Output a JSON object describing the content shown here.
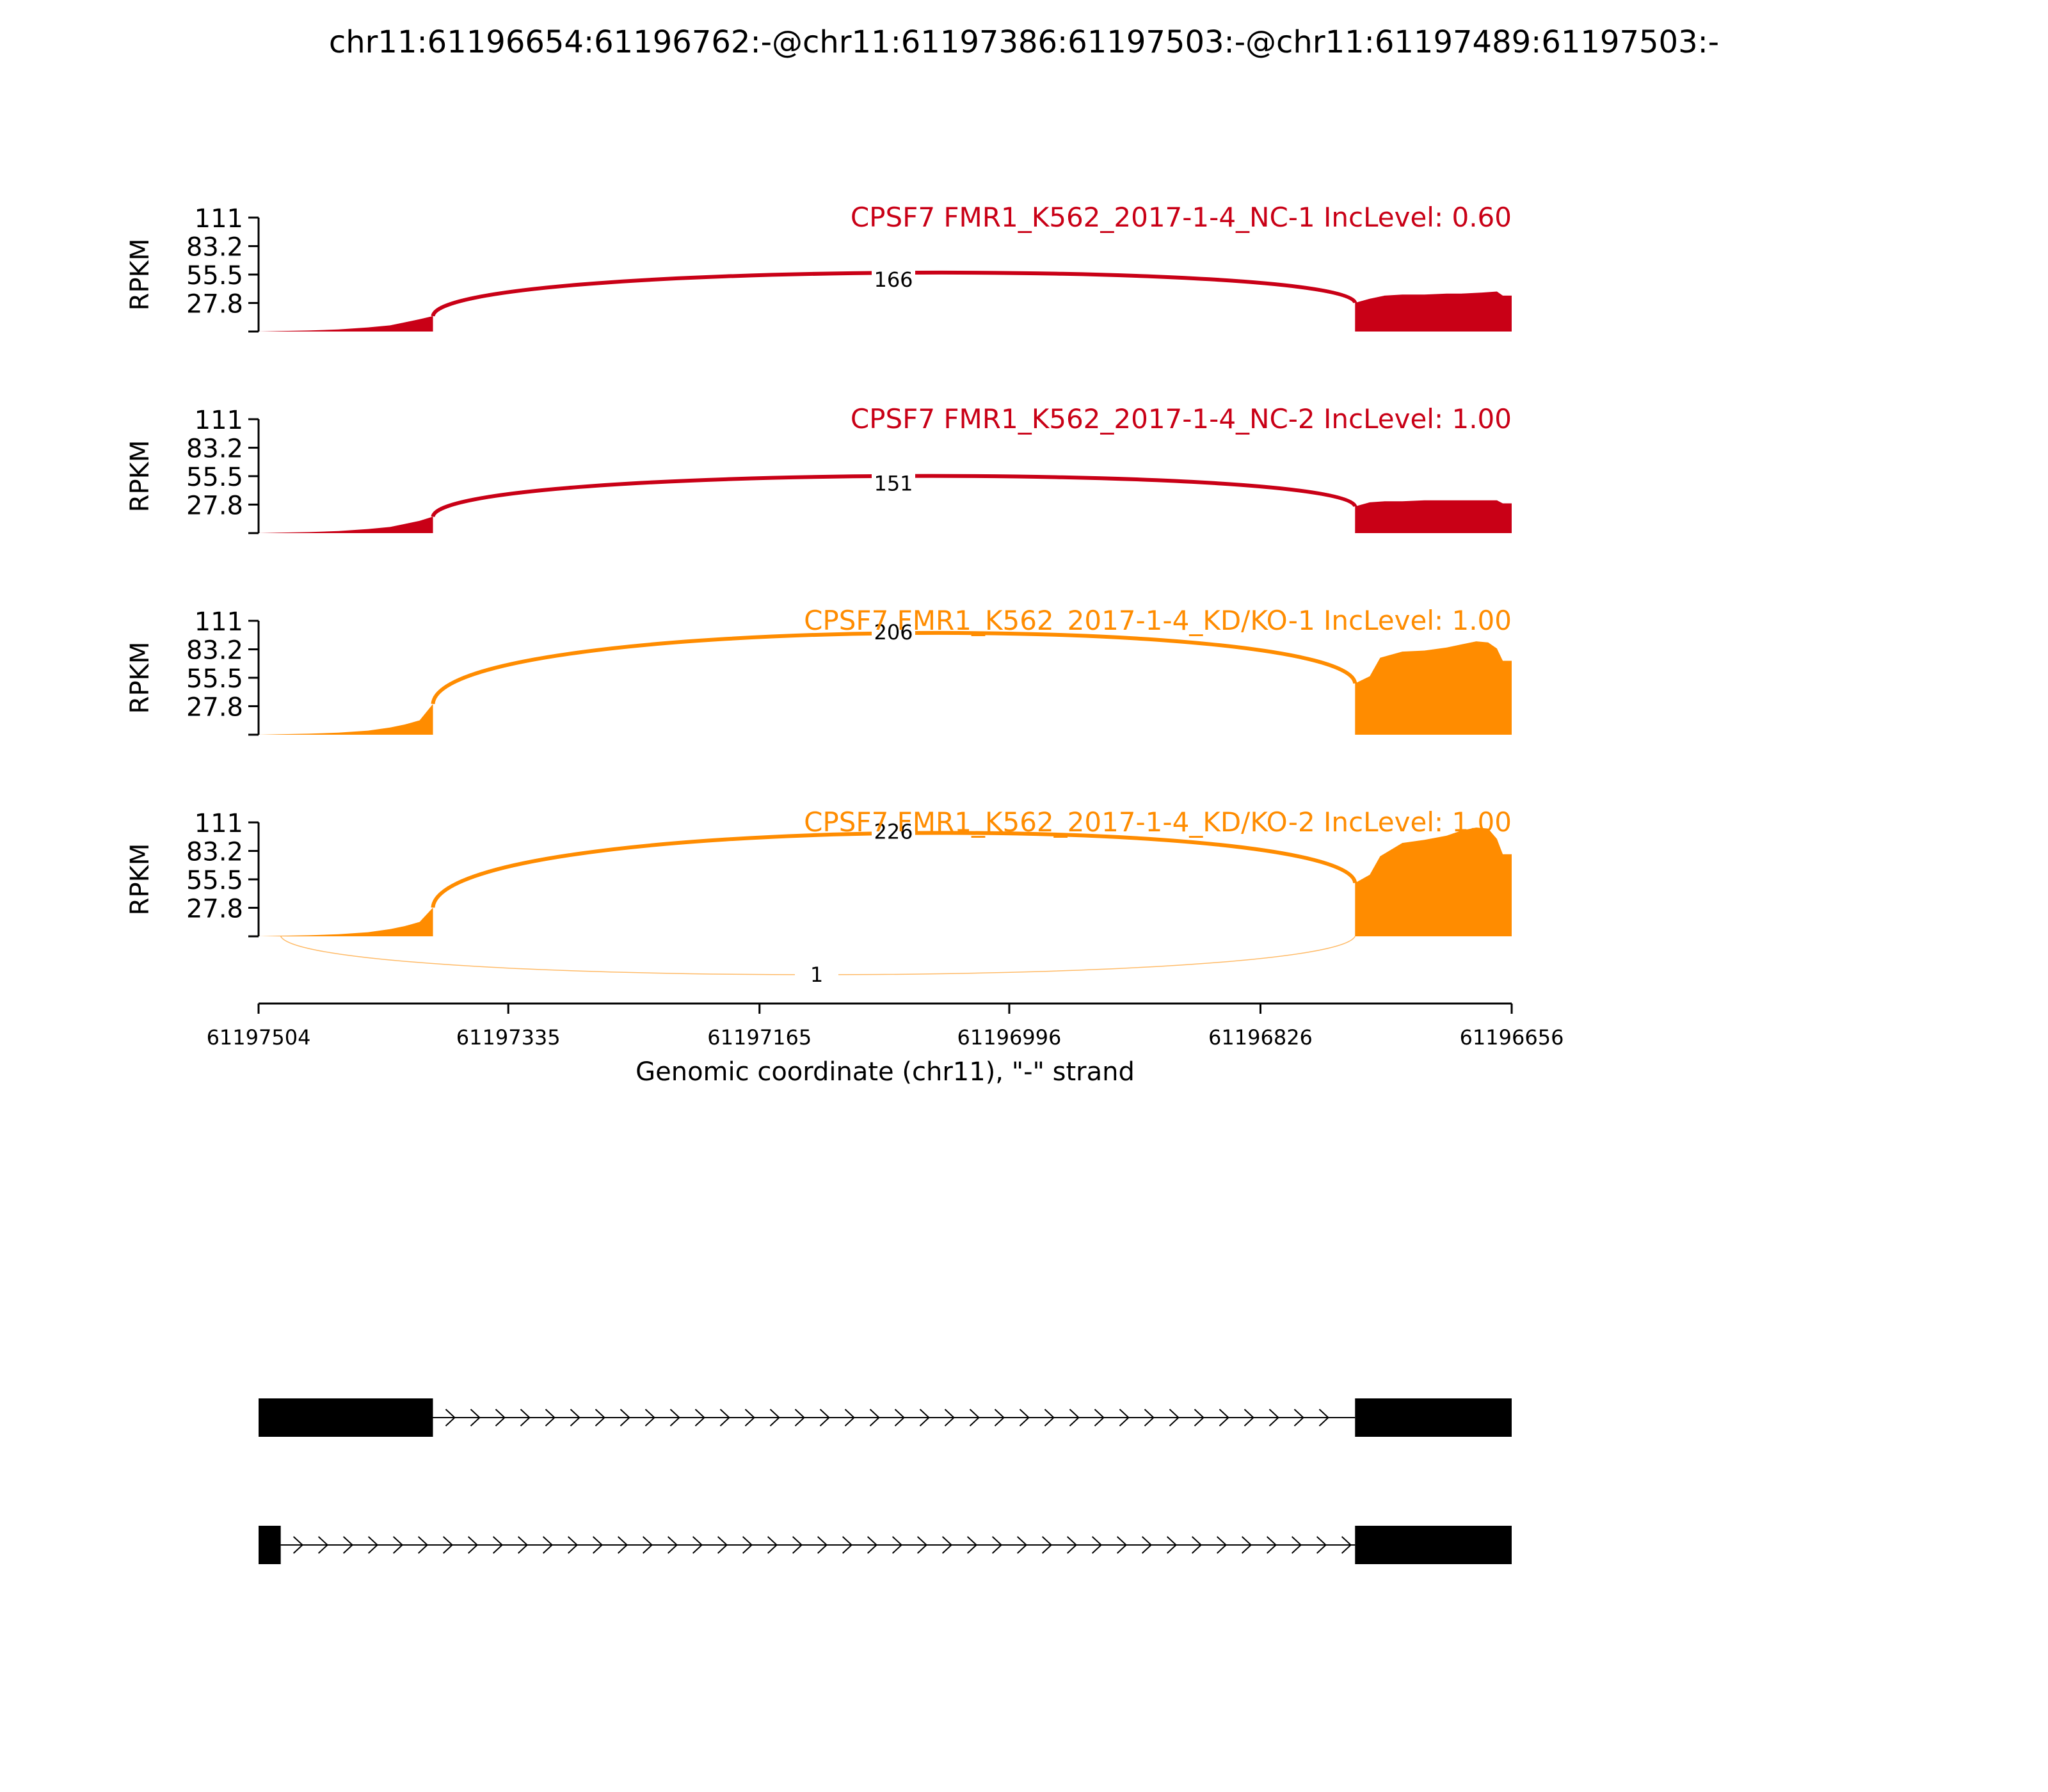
{
  "title": "chr11:61196654:61196762:-@chr11:61197386:61197503:-@chr11:61197489:61197503:-",
  "chart_data": {
    "type": "area",
    "title": "chr11:61196654:61196762:-@chr11:61197386:61197503:-@chr11:61197489:61197503:-",
    "xlabel": "Genomic coordinate (chr11), \"-\" strand",
    "ylabel": "RPKM",
    "xlim": [
      61197504,
      61196656
    ],
    "x_reversed": true,
    "xticks": [
      "61197504",
      "61197335",
      "61197165",
      "61196996",
      "61196826",
      "61196656"
    ],
    "ylim": [
      0,
      111
    ],
    "yticks": [
      "111",
      "83.2",
      "55.5",
      "27.8"
    ],
    "exon_regions": [
      [
        61197504,
        61197386
      ],
      [
        61196762,
        61196656
      ]
    ],
    "tracks": [
      {
        "label": "CPSF7 FMR1_K562_2017-1-4_NC-1 IncLevel: 0.60",
        "color": "#c90016",
        "coverage": [
          [
            61197504,
            0
          ],
          [
            61197490,
            0.5
          ],
          [
            61197470,
            1
          ],
          [
            61197450,
            2
          ],
          [
            61197430,
            4
          ],
          [
            61197415,
            6
          ],
          [
            61197405,
            9
          ],
          [
            61197395,
            12
          ],
          [
            61197386,
            15
          ],
          [
            61196762,
            28
          ],
          [
            61196752,
            32
          ],
          [
            61196742,
            35
          ],
          [
            61196730,
            36
          ],
          [
            61196715,
            36
          ],
          [
            61196700,
            37
          ],
          [
            61196690,
            37
          ],
          [
            61196676,
            38
          ],
          [
            61196666,
            39
          ],
          [
            61196662,
            35
          ],
          [
            61196656,
            35
          ]
        ],
        "junctions": [
          {
            "label": "166",
            "from": 61197386,
            "to": 61196762,
            "side": "above"
          }
        ]
      },
      {
        "label": "CPSF7 FMR1_K562_2017-1-4_NC-2 IncLevel: 1.00",
        "color": "#c90016",
        "coverage": [
          [
            61197504,
            0
          ],
          [
            61197490,
            0.5
          ],
          [
            61197470,
            1
          ],
          [
            61197450,
            2
          ],
          [
            61197430,
            4
          ],
          [
            61197415,
            6
          ],
          [
            61197405,
            9
          ],
          [
            61197395,
            12
          ],
          [
            61197386,
            16
          ],
          [
            61196762,
            26
          ],
          [
            61196752,
            30
          ],
          [
            61196742,
            31
          ],
          [
            61196730,
            31
          ],
          [
            61196715,
            32
          ],
          [
            61196700,
            32
          ],
          [
            61196690,
            32
          ],
          [
            61196676,
            32
          ],
          [
            61196666,
            32
          ],
          [
            61196662,
            29
          ],
          [
            61196656,
            29
          ]
        ],
        "junctions": [
          {
            "label": "151",
            "from": 61197386,
            "to": 61196762,
            "side": "above"
          }
        ]
      },
      {
        "label": "CPSF7 FMR1_K562_2017-1-4_KD/KO-1 IncLevel: 1.00",
        "color": "#ff8c00",
        "coverage": [
          [
            61197504,
            0
          ],
          [
            61197490,
            0.5
          ],
          [
            61197470,
            1
          ],
          [
            61197450,
            2
          ],
          [
            61197430,
            4
          ],
          [
            61197415,
            7
          ],
          [
            61197405,
            10
          ],
          [
            61197395,
            14
          ],
          [
            61197386,
            30
          ],
          [
            61196762,
            50
          ],
          [
            61196752,
            57
          ],
          [
            61196745,
            75
          ],
          [
            61196730,
            81
          ],
          [
            61196715,
            82
          ],
          [
            61196700,
            85
          ],
          [
            61196690,
            88
          ],
          [
            61196680,
            91
          ],
          [
            61196672,
            90
          ],
          [
            61196666,
            84
          ],
          [
            61196662,
            72
          ],
          [
            61196656,
            72
          ]
        ],
        "junctions": [
          {
            "label": "206",
            "from": 61197386,
            "to": 61196762,
            "side": "above"
          }
        ]
      },
      {
        "label": "CPSF7 FMR1_K562_2017-1-4_KD/KO-2 IncLevel: 1.00",
        "color": "#ff8c00",
        "coverage": [
          [
            61197504,
            0
          ],
          [
            61197490,
            0.5
          ],
          [
            61197470,
            1
          ],
          [
            61197450,
            2
          ],
          [
            61197430,
            4
          ],
          [
            61197415,
            7
          ],
          [
            61197405,
            10
          ],
          [
            61197395,
            14
          ],
          [
            61197386,
            28
          ],
          [
            61196762,
            52
          ],
          [
            61196752,
            60
          ],
          [
            61196745,
            78
          ],
          [
            61196730,
            91
          ],
          [
            61196715,
            94
          ],
          [
            61196700,
            98
          ],
          [
            61196690,
            103
          ],
          [
            61196680,
            106
          ],
          [
            61196672,
            105
          ],
          [
            61196666,
            95
          ],
          [
            61196662,
            80
          ],
          [
            61196656,
            80
          ]
        ],
        "junctions": [
          {
            "label": "226",
            "from": 61197386,
            "to": 61196762,
            "side": "above"
          },
          {
            "label": "1",
            "from": 61197489,
            "to": 61196762,
            "side": "below"
          }
        ]
      }
    ],
    "gene_models": [
      {
        "exons": [
          [
            61197504,
            61197386
          ],
          [
            61196762,
            61196656
          ]
        ],
        "intron_strand_marker": ">"
      },
      {
        "exons": [
          [
            61197504,
            61197489
          ],
          [
            61196762,
            61196656
          ]
        ],
        "intron_strand_marker": ">"
      }
    ]
  }
}
